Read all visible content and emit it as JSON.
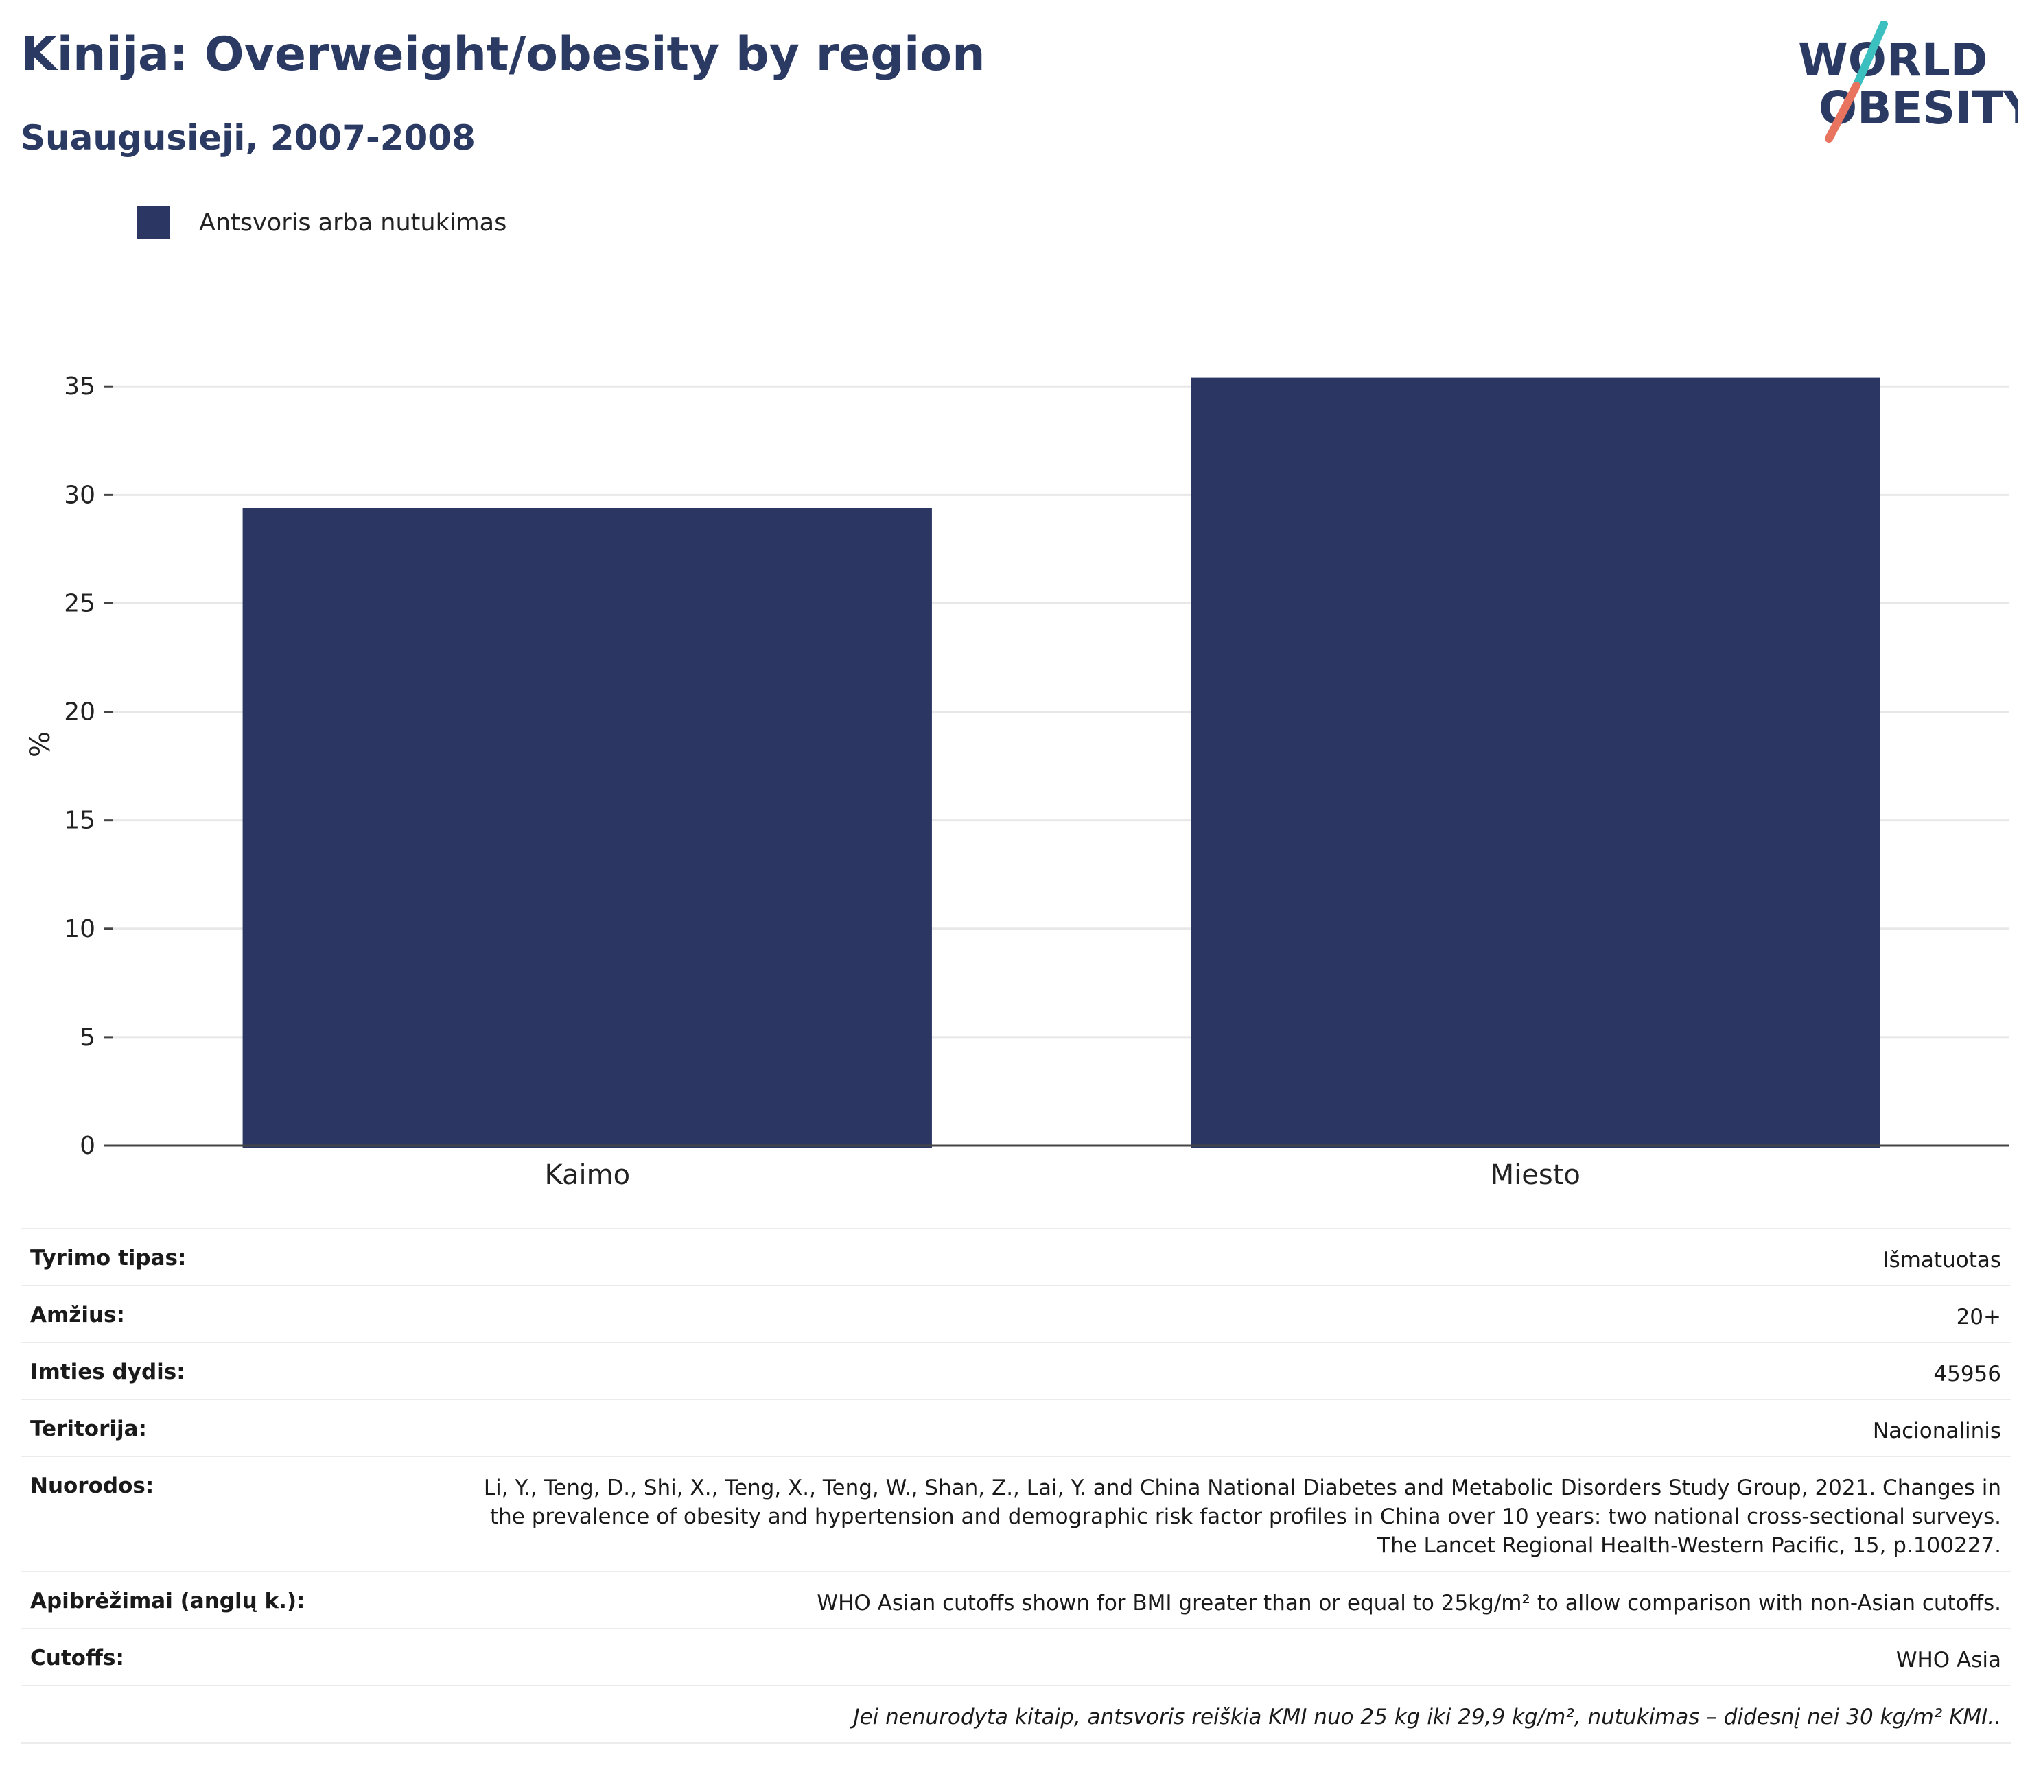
{
  "header": {
    "title": "Kinija: Overweight/obesity by region",
    "subtitle": "Suaugusieji, 2007-2008"
  },
  "logo": {
    "line1": "WORLD",
    "line2": "OBESITY",
    "colors": {
      "text": "#2b3a63",
      "slash_top": "#3bbfbf",
      "slash_bottom": "#e8735f"
    }
  },
  "colors": {
    "bar": "#2b3762",
    "axis": "#444444",
    "grid": "#e8e8e8"
  },
  "chart_data": {
    "type": "bar",
    "title": "Kinija: Overweight/obesity by region",
    "subtitle": "Suaugusieji, 2007-2008",
    "categories": [
      "Kaimo",
      "Miesto"
    ],
    "series": [
      {
        "name": "Antsvoris arba nutukimas",
        "values": [
          29.4,
          35.4
        ]
      }
    ],
    "ylabel": "%",
    "xlabel": "",
    "ylim": [
      0,
      37
    ],
    "yticks": [
      0,
      5,
      10,
      15,
      20,
      25,
      30,
      35
    ],
    "grid": true,
    "legend": "top-left"
  },
  "meta": [
    {
      "key": "Tyrimo tipas:",
      "value": "Išmatuotas"
    },
    {
      "key": "Amžius:",
      "value": "20+"
    },
    {
      "key": "Imties dydis:",
      "value": "45956"
    },
    {
      "key": "Teritorija:",
      "value": "Nacionalinis"
    },
    {
      "key": "Nuorodos:",
      "value": "Li, Y., Teng, D., Shi, X., Teng, X., Teng, W., Shan, Z., Lai, Y. and China National Diabetes and Metabolic Disorders Study Group, 2021. Changes in the prevalence of obesity and hypertension and demographic risk factor profiles in China over 10 years: two national cross-sectional surveys. The Lancet Regional Health-Western Pacific, 15, p.100227."
    },
    {
      "key": "Apibrėžimai (anglų k.):",
      "value": "WHO Asian cutoffs shown for BMI greater than or equal to 25kg/m² to allow comparison with non-Asian cutoffs."
    },
    {
      "key": "Cutoffs:",
      "value": "WHO Asia"
    }
  ],
  "footnote": "Jei nenurodyta kitaip, antsvoris reiškia KMI nuo 25 kg iki 29,9 kg/m², nutukimas – didesnį nei 30 kg/m² KMI.."
}
